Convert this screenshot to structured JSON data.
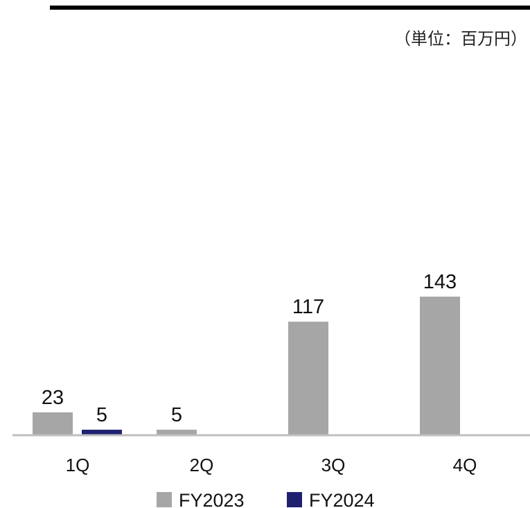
{
  "unit_label": "（単位：百万円）",
  "colors": {
    "fy2023": "#a6a6a6",
    "fy2024": "#1f2170",
    "top_rule": "#000000",
    "axis": "#bfbfbf",
    "text": "#111111"
  },
  "chart_data": {
    "type": "bar",
    "categories": [
      "1Q",
      "2Q",
      "3Q",
      "4Q"
    ],
    "series": [
      {
        "name": "FY2023",
        "values": [
          23,
          5,
          117,
          143
        ]
      },
      {
        "name": "FY2024",
        "values": [
          5,
          null,
          null,
          null
        ]
      }
    ],
    "title": "",
    "xlabel": "",
    "ylabel": "",
    "ylim": [
      0,
      175
    ],
    "grid": false,
    "legend": "bottom-center"
  }
}
